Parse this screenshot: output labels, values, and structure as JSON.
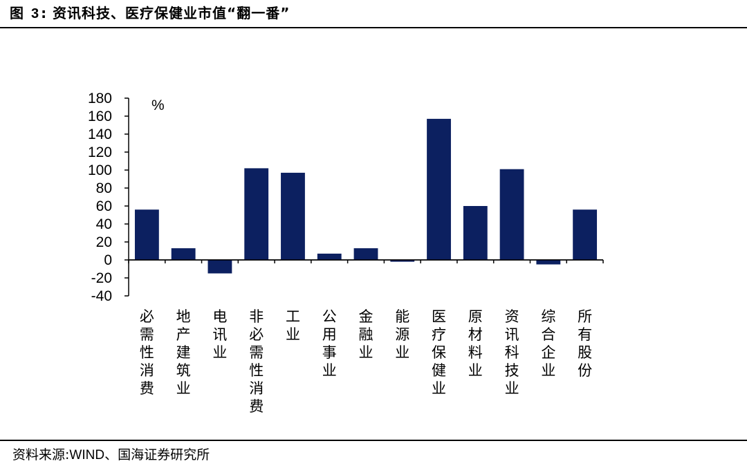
{
  "header": {
    "figure_prefix": "图",
    "figure_number": "3",
    "figure_sep": ":",
    "title": "资讯科技、医疗保健业市值“翻一番”"
  },
  "footer": {
    "source_prefix": "资料来源:",
    "source_latin": "WIND",
    "source_rest": "、国海证券研究所"
  },
  "chart_data": {
    "type": "bar",
    "title": "",
    "xlabel": "",
    "ylabel": "%",
    "ylim": [
      -40,
      180
    ],
    "yticks": [
      180,
      160,
      140,
      120,
      100,
      80,
      60,
      40,
      20,
      0,
      -20,
      -40
    ],
    "grid": false,
    "legend": "none",
    "bar_color": "#0c2060",
    "categories": [
      "必需性消费",
      "地产建筑业",
      "电讯业",
      "非必需性消费",
      "工业",
      "公用事业",
      "金融业",
      "能源业",
      "医疗保健业",
      "原材料业",
      "资讯科技业",
      "综合企业",
      "所有股份"
    ],
    "values": [
      56,
      13,
      -15,
      102,
      97,
      7,
      13,
      -2,
      157,
      60,
      101,
      -5,
      56
    ]
  }
}
